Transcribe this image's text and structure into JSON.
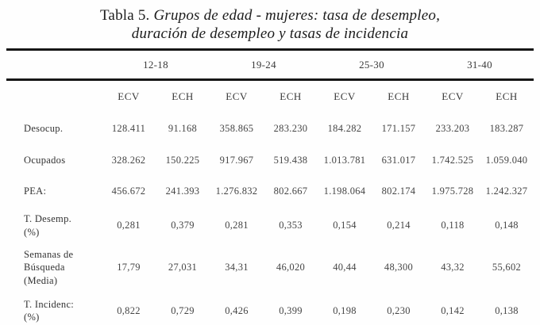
{
  "title": {
    "prefix": "Tabla 5. ",
    "italic1": "Grupos de edad - mujeres: tasa de desempleo,",
    "italic2": "duración de desempleo y tasas de incidencia"
  },
  "table": {
    "age_groups": [
      "12-18",
      "19-24",
      "25-30",
      "31-40"
    ],
    "sub_headers": [
      "ECV",
      "ECH",
      "ECV",
      "ECH",
      "ECV",
      "ECH",
      "ECV",
      "ECH"
    ],
    "rows": [
      {
        "label": "Desocup.",
        "values": [
          "128.411",
          "91.168",
          "358.865",
          "283.230",
          "184.282",
          "171.157",
          "233.203",
          "183.287"
        ]
      },
      {
        "label": "Ocupados",
        "values": [
          "328.262",
          "150.225",
          "917.967",
          "519.438",
          "1.013.781",
          "631.017",
          "1.742.525",
          "1.059.040"
        ]
      },
      {
        "label": "PEA:",
        "values": [
          "456.672",
          "241.393",
          "1.276.832",
          "802.667",
          "1.198.064",
          "802.174",
          "1.975.728",
          "1.242.327"
        ]
      },
      {
        "label": "T. Desemp.\n(%)",
        "values": [
          "0,281",
          "0,379",
          "0,281",
          "0,353",
          "0,154",
          "0,214",
          "0,118",
          "0,148"
        ]
      },
      {
        "label": "Semanas de\nBúsqueda\n(Media)",
        "values": [
          "17,79",
          "27,031",
          "34,31",
          "46,020",
          "40,44",
          "48,300",
          "43,32",
          "55,602"
        ]
      },
      {
        "label": "T. Incidenc:\n(%)",
        "values": [
          "0,822",
          "0,729",
          "0,426",
          "0,399",
          "0,198",
          "0,230",
          "0,142",
          "0,138"
        ]
      }
    ]
  }
}
